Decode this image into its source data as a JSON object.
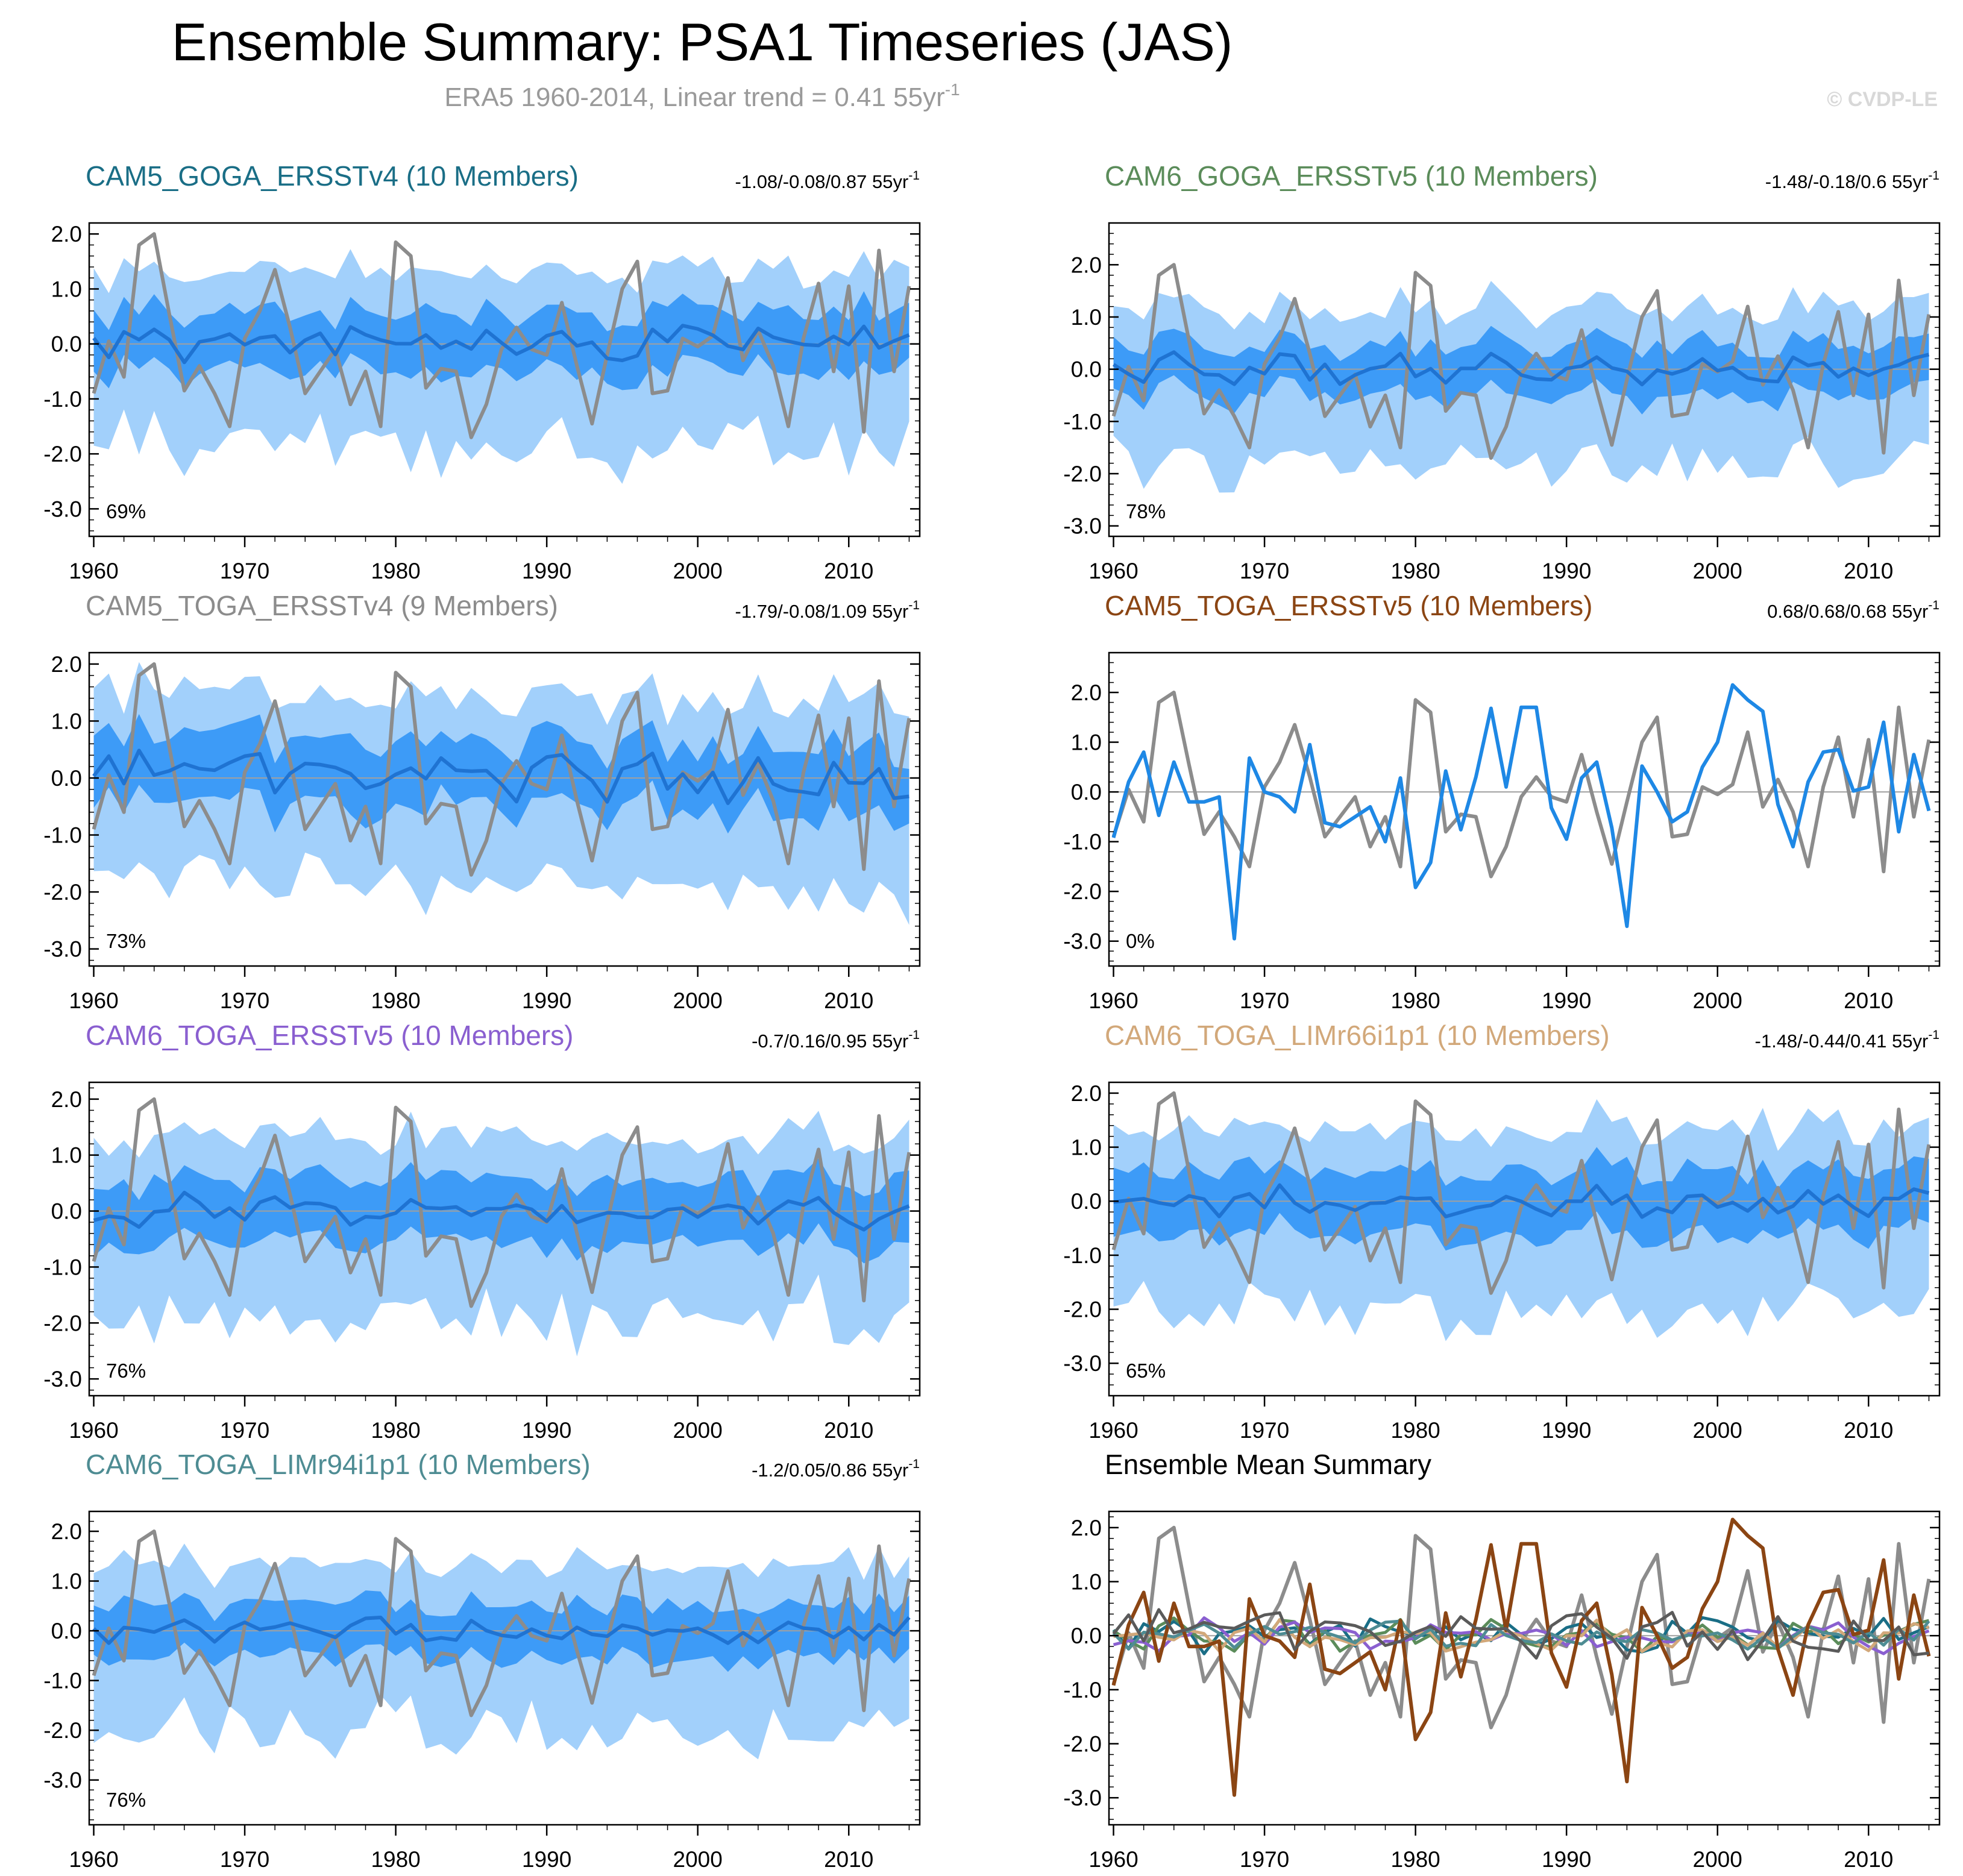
{
  "title": "Ensemble Summary: PSA1 Timeseries (JAS)",
  "subtitle": "ERA5 1960-2014, Linear trend = 0.41 55yr",
  "subtitle_exp": "-1",
  "copyright": "© CVDP-LE",
  "colors": {
    "obs": "#8c8c8c",
    "band_outer": "#a2d0fb",
    "band_inner": "#3d9bf7",
    "ens_mean": "#1f73d2",
    "zero_line": "#a0a0a0"
  },
  "chart_data": [
    {
      "type": "line",
      "title": "CAM5_GOGA_ERSSTv4 (10 Members)",
      "title_color": "#1a6e86",
      "trend": "-1.08/-0.08/0.87 55yr",
      "trend_exp": "-1",
      "percent": "69%",
      "ylim": [
        -3.5,
        2.2
      ],
      "yticks": [
        "2.0",
        "1.0",
        "0.0",
        "-1.0",
        "-2.0",
        "-3.0"
      ],
      "xticks": [
        "1960",
        "1970",
        "1980",
        "1990",
        "2000",
        "2010"
      ],
      "xlim": [
        1959.7,
        2014.7
      ],
      "seed": 11,
      "mean_scale": 0.28,
      "inner": 0.55,
      "outer": 1.3
    },
    {
      "type": "line",
      "title": "CAM6_GOGA_ERSSTv5 (10 Members)",
      "title_color": "#5b8c5a",
      "trend": "-1.48/-0.18/0.6 55yr",
      "trend_exp": "-1",
      "percent": "78%",
      "ylim": [
        -3.2,
        2.8
      ],
      "yticks": [
        "2.0",
        "1.0",
        "0.0",
        "-1.0",
        "-2.0",
        "-3.0"
      ],
      "xticks": [
        "1960",
        "1970",
        "1980",
        "1990",
        "2000",
        "2010"
      ],
      "xlim": [
        1959.7,
        2014.7
      ],
      "seed": 23,
      "mean_scale": 0.22,
      "inner": 0.5,
      "outer": 1.25
    },
    {
      "type": "line",
      "title": "CAM5_TOGA_ERSSTv4 (9 Members)",
      "title_color": "#8c8c8c",
      "trend": "-1.79/-0.08/1.09 55yr",
      "trend_exp": "-1",
      "percent": "73%",
      "ylim": [
        -3.3,
        2.2
      ],
      "yticks": [
        "2.0",
        "1.0",
        "0.0",
        "-1.0",
        "-2.0",
        "-3.0"
      ],
      "xticks": [
        "1960",
        "1970",
        "1980",
        "1990",
        "2000",
        "2010"
      ],
      "xlim": [
        1959.7,
        2014.7
      ],
      "seed": 37,
      "mean_scale": 0.4,
      "inner": 0.6,
      "outer": 1.35
    },
    {
      "type": "line",
      "title": "CAM5_TOGA_ERSSTv5 (10 Members)",
      "title_color": "#8b4513",
      "trend": "0.68/0.68/0.68 55yr",
      "trend_exp": "-1",
      "percent": "0%",
      "ylim": [
        -3.5,
        2.8
      ],
      "yticks": [
        "2.0",
        "1.0",
        "0.0",
        "-1.0",
        "-2.0",
        "-3.0"
      ],
      "xticks": [
        "1960",
        "1970",
        "1980",
        "1990",
        "2000",
        "2010"
      ],
      "xlim": [
        1959.7,
        2014.7
      ],
      "single_member": true,
      "member": [
        -0.92,
        0.2,
        0.8,
        -0.47,
        0.6,
        -0.2,
        -0.2,
        -0.1,
        -2.95,
        0.68,
        0.0,
        -0.1,
        -0.4,
        0.95,
        -0.62,
        -0.7,
        -0.5,
        -0.3,
        -1.0,
        0.28,
        -1.92,
        -1.42,
        0.42,
        -0.76,
        0.3,
        1.68,
        0.1,
        1.7,
        1.7,
        -0.32,
        -0.95,
        0.28,
        0.6,
        -0.72,
        -2.7,
        0.52,
        0.0,
        -0.6,
        -0.4,
        0.5,
        1.0,
        2.15,
        1.85,
        1.62,
        -0.25,
        -1.1,
        0.2,
        0.8,
        0.85,
        0.02,
        0.1,
        1.4,
        -0.8,
        0.75,
        -0.38
      ]
    },
    {
      "type": "line",
      "title": "CAM6_TOGA_ERSSTv5 (10 Members)",
      "title_color": "#8a5fd0",
      "trend": "-0.7/0.16/0.95 55yr",
      "trend_exp": "-1",
      "percent": "76%",
      "ylim": [
        -3.3,
        2.3
      ],
      "yticks": [
        "2.0",
        "1.0",
        "0.0",
        "-1.0",
        "-2.0",
        "-3.0"
      ],
      "xticks": [
        "1960",
        "1970",
        "1980",
        "1990",
        "2000",
        "2010"
      ],
      "xlim": [
        1959.7,
        2014.7
      ],
      "seed": 53,
      "mean_scale": 0.22,
      "inner": 0.6,
      "outer": 1.3
    },
    {
      "type": "line",
      "title": "CAM6_TOGA_LIMr66i1p1 (10 Members)",
      "title_color": "#d2a87a",
      "trend": "-1.48/-0.44/0.41 55yr",
      "trend_exp": "-1",
      "percent": "65%",
      "ylim": [
        -3.6,
        2.2
      ],
      "yticks": [
        "2.0",
        "1.0",
        "0.0",
        "-1.0",
        "-2.0",
        "-3.0"
      ],
      "xticks": [
        "1960",
        "1970",
        "1980",
        "1990",
        "2000",
        "2010"
      ],
      "xlim": [
        1959.7,
        2014.7
      ],
      "seed": 67,
      "mean_scale": 0.2,
      "inner": 0.6,
      "outer": 1.35
    },
    {
      "type": "line",
      "title": "CAM6_TOGA_LIMr94i1p1 (10 Members)",
      "title_color": "#4e8c93",
      "trend": "-1.2/0.05/0.86 55yr",
      "trend_exp": "-1",
      "percent": "76%",
      "ylim": [
        -3.9,
        2.4
      ],
      "yticks": [
        "2.0",
        "1.0",
        "0.0",
        "-1.0",
        "-2.0",
        "-3.0"
      ],
      "xticks": [
        "1960",
        "1970",
        "1980",
        "1990",
        "2000",
        "2010"
      ],
      "xlim": [
        1959.7,
        2014.7
      ],
      "seed": 79,
      "mean_scale": 0.2,
      "inner": 0.55,
      "outer": 1.4
    },
    {
      "type": "line",
      "title": "Ensemble Mean Summary",
      "title_color": "#000000",
      "trend": "",
      "trend_exp": "",
      "percent": "",
      "ylim": [
        -3.5,
        2.3
      ],
      "yticks": [
        "2.0",
        "1.0",
        "0.0",
        "-1.0",
        "-2.0",
        "-3.0"
      ],
      "xticks": [
        "1960",
        "1970",
        "1980",
        "1990",
        "2000",
        "2010"
      ],
      "xlim": [
        1959.7,
        2014.7
      ],
      "summary": true,
      "summary_colors": [
        "#1a6e86",
        "#5b8c5a",
        "#8c8c8c",
        "#8a5fd0",
        "#d2a87a",
        "#4e8c93"
      ]
    }
  ],
  "obs_series": {
    "name": "ERA5",
    "start_year": 1960,
    "values": [
      -0.9,
      0.05,
      -0.6,
      1.8,
      2.0,
      0.55,
      -0.85,
      -0.4,
      -0.9,
      -1.5,
      0.1,
      0.6,
      1.35,
      0.3,
      -0.9,
      -0.5,
      -0.1,
      -1.1,
      -0.5,
      -1.5,
      1.85,
      1.6,
      -0.8,
      -0.45,
      -0.5,
      -1.7,
      -1.1,
      -0.1,
      0.3,
      -0.1,
      -0.2,
      0.75,
      -0.4,
      -1.45,
      -0.2,
      1.0,
      1.5,
      -0.9,
      -0.85,
      0.1,
      -0.05,
      0.15,
      1.2,
      -0.3,
      0.25,
      -0.4,
      -1.5,
      0.1,
      1.1,
      -0.5,
      1.05,
      -1.6,
      1.7,
      -0.5,
      1.05
    ]
  }
}
